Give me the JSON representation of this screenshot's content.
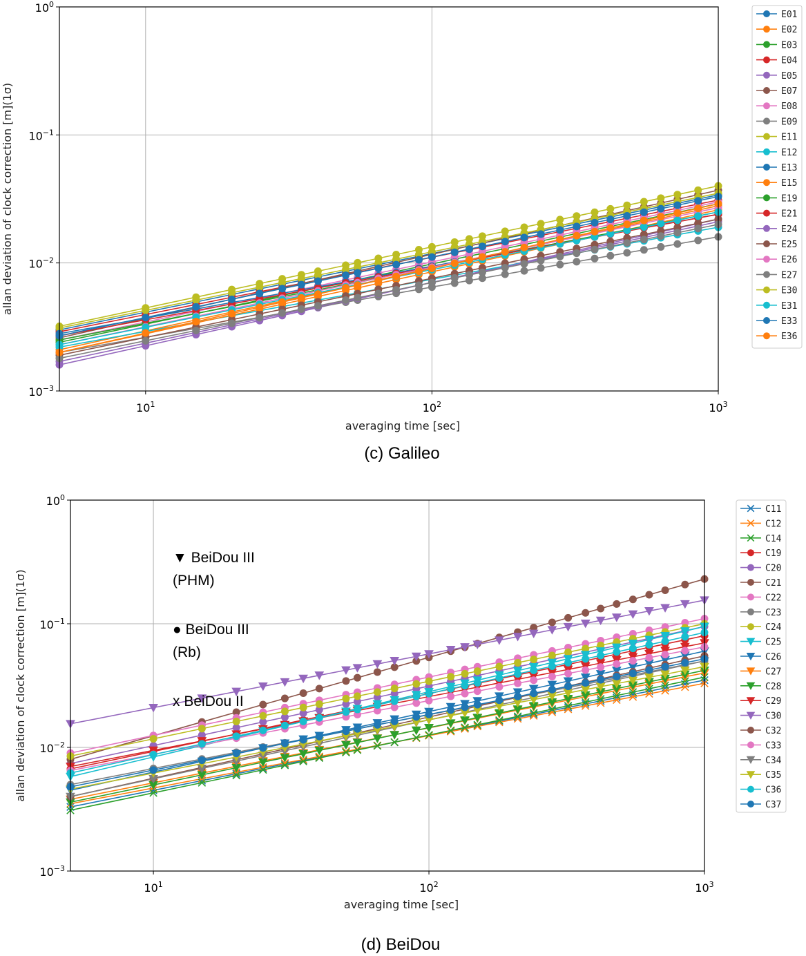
{
  "colors": [
    "#1f77b4",
    "#ff7f0e",
    "#2ca02c",
    "#d62728",
    "#9467bd",
    "#8c564b",
    "#e377c2",
    "#7f7f7f",
    "#bcbd22",
    "#17becf"
  ],
  "chart_data": [
    {
      "type": "line",
      "caption": "(c)  Galileo",
      "xlabel": "averaging time [sec]",
      "ylabel": "allan deviation of clock correction [m](1σ)",
      "xscale": "log",
      "yscale": "log",
      "xlim": [
        5,
        1000
      ],
      "ylim": [
        0.001,
        1
      ],
      "x_ticks": [
        10,
        100,
        1000
      ],
      "x_tick_labels": [
        [
          "10",
          "1"
        ],
        [
          "10",
          "2"
        ],
        [
          "10",
          "3"
        ]
      ],
      "y_ticks": [
        0.001,
        0.01,
        0.1,
        1
      ],
      "y_tick_labels": [
        [
          "10",
          "−3"
        ],
        [
          "10",
          "−2"
        ],
        [
          "10",
          "−1"
        ],
        [
          "10",
          "0"
        ]
      ],
      "grid": true,
      "legend_position": "outside right",
      "x": [
        5,
        10,
        15,
        20,
        25,
        30,
        35,
        40,
        50,
        55,
        65,
        75,
        90,
        100,
        120,
        135,
        150,
        180,
        210,
        240,
        280,
        320,
        370,
        420,
        480,
        550,
        630,
        720,
        850,
        1000
      ],
      "series": [
        {
          "name": "E01",
          "marker": "o",
          "y0": 0.003,
          "y1": 0.034
        },
        {
          "name": "E02",
          "marker": "o",
          "y0": 0.0021,
          "y1": 0.028
        },
        {
          "name": "E03",
          "marker": "o",
          "y0": 0.0024,
          "y1": 0.029
        },
        {
          "name": "E04",
          "marker": "o",
          "y0": 0.0029,
          "y1": 0.031
        },
        {
          "name": "E05",
          "marker": "o",
          "y0": 0.0016,
          "y1": 0.022
        },
        {
          "name": "E07",
          "marker": "o",
          "y0": 0.0026,
          "y1": 0.037
        },
        {
          "name": "E08",
          "marker": "o",
          "y0": 0.0025,
          "y1": 0.03
        },
        {
          "name": "E09",
          "marker": "o",
          "y0": 0.002,
          "y1": 0.016
        },
        {
          "name": "E11",
          "marker": "o",
          "y0": 0.0031,
          "y1": 0.035
        },
        {
          "name": "E12",
          "marker": "o",
          "y0": 0.0022,
          "y1": 0.019
        },
        {
          "name": "E13",
          "marker": "o",
          "y0": 0.0028,
          "y1": 0.024
        },
        {
          "name": "E15",
          "marker": "o",
          "y0": 0.002,
          "y1": 0.026
        },
        {
          "name": "E19",
          "marker": "o",
          "y0": 0.0025,
          "y1": 0.025
        },
        {
          "name": "E21",
          "marker": "o",
          "y0": 0.0027,
          "y1": 0.024
        },
        {
          "name": "E24",
          "marker": "o",
          "y0": 0.0017,
          "y1": 0.021
        },
        {
          "name": "E25",
          "marker": "o",
          "y0": 0.0019,
          "y1": 0.022
        },
        {
          "name": "E26",
          "marker": "o",
          "y0": 0.0023,
          "y1": 0.027
        },
        {
          "name": "E27",
          "marker": "o",
          "y0": 0.0018,
          "y1": 0.02
        },
        {
          "name": "E30",
          "marker": "o",
          "y0": 0.0032,
          "y1": 0.04
        },
        {
          "name": "E31",
          "marker": "o",
          "y0": 0.0023,
          "y1": 0.025
        },
        {
          "name": "E33",
          "marker": "o",
          "y0": 0.0027,
          "y1": 0.033
        },
        {
          "name": "E36",
          "marker": "o",
          "y0": 0.002,
          "y1": 0.029
        }
      ]
    },
    {
      "type": "line",
      "caption": "(d)  BeiDou",
      "xlabel": "averaging time [sec]",
      "ylabel": "allan deviation of clock correction [m](1σ)",
      "xscale": "log",
      "yscale": "log",
      "xlim": [
        5,
        1000
      ],
      "ylim": [
        0.001,
        1
      ],
      "x_ticks": [
        10,
        100,
        1000
      ],
      "x_tick_labels": [
        [
          "10",
          "1"
        ],
        [
          "10",
          "2"
        ],
        [
          "10",
          "3"
        ]
      ],
      "y_ticks": [
        0.001,
        0.01,
        0.1,
        1
      ],
      "y_tick_labels": [
        [
          "10",
          "−3"
        ],
        [
          "10",
          "−2"
        ],
        [
          "10",
          "−1"
        ],
        [
          "10",
          "0"
        ]
      ],
      "grid": true,
      "legend_position": "outside right",
      "annotations": [
        {
          "symbol": "▼",
          "text": "BeiDou III",
          "sub": "(PHM)"
        },
        {
          "symbol": "●",
          "text": "BeiDou III",
          "sub": "(Rb)"
        },
        {
          "symbol": "x",
          "text": "BeiDou II",
          "sub": ""
        }
      ],
      "x": [
        5,
        10,
        15,
        20,
        25,
        30,
        35,
        40,
        50,
        55,
        65,
        75,
        90,
        100,
        120,
        135,
        150,
        180,
        210,
        240,
        280,
        320,
        370,
        420,
        480,
        550,
        630,
        720,
        850,
        1000
      ],
      "series": [
        {
          "name": "C11",
          "marker": "x",
          "y0": 0.0033,
          "y1": 0.035
        },
        {
          "name": "C12",
          "marker": "x",
          "y0": 0.0035,
          "y1": 0.033
        },
        {
          "name": "C14",
          "marker": "x",
          "y0": 0.0031,
          "y1": 0.037
        },
        {
          "name": "C19",
          "marker": "o",
          "y0": 0.0067,
          "y1": 0.08
        },
        {
          "name": "C20",
          "marker": "o",
          "y0": 0.0074,
          "y1": 0.095
        },
        {
          "name": "C21",
          "marker": "o",
          "y0": 0.008,
          "y1": 0.23
        },
        {
          "name": "C22",
          "marker": "o",
          "y0": 0.009,
          "y1": 0.11
        },
        {
          "name": "C23",
          "marker": "o",
          "y0": 0.005,
          "y1": 0.05
        },
        {
          "name": "C24",
          "marker": "o",
          "y0": 0.0085,
          "y1": 0.1
        },
        {
          "name": "C25",
          "marker": "v",
          "y0": 0.0058,
          "y1": 0.095
        },
        {
          "name": "C26",
          "marker": "v",
          "y0": 0.0045,
          "y1": 0.06
        },
        {
          "name": "C27",
          "marker": "v",
          "y0": 0.0038,
          "y1": 0.04
        },
        {
          "name": "C28",
          "marker": "v",
          "y0": 0.0036,
          "y1": 0.042
        },
        {
          "name": "C29",
          "marker": "v",
          "y0": 0.007,
          "y1": 0.07
        },
        {
          "name": "C30",
          "marker": "v",
          "y0": 0.0155,
          "y1": 0.155
        },
        {
          "name": "C32",
          "marker": "o",
          "y0": 0.004,
          "y1": 0.055
        },
        {
          "name": "C33",
          "marker": "o",
          "y0": 0.0065,
          "y1": 0.065
        },
        {
          "name": "C34",
          "marker": "v",
          "y0": 0.004,
          "y1": 0.05
        },
        {
          "name": "C35",
          "marker": "v",
          "y0": 0.0046,
          "y1": 0.045
        },
        {
          "name": "C36",
          "marker": "o",
          "y0": 0.0062,
          "y1": 0.085
        },
        {
          "name": "C37",
          "marker": "o",
          "y0": 0.0048,
          "y1": 0.052
        }
      ]
    }
  ]
}
